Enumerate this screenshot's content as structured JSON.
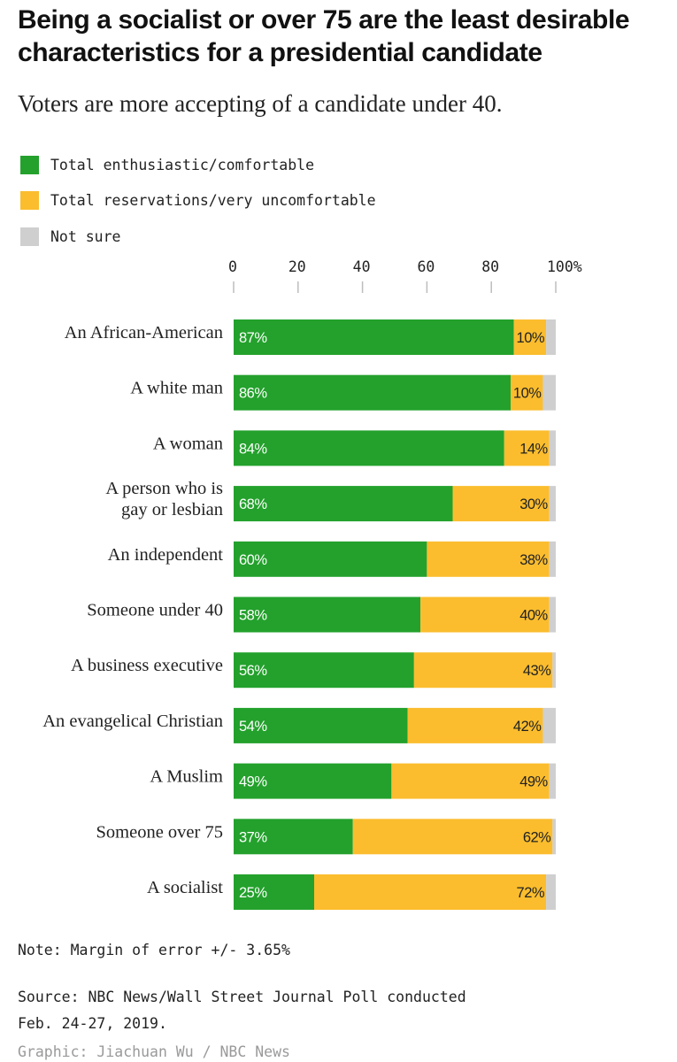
{
  "colors": {
    "enthusiastic": "#23a12c",
    "reservations": "#fbbd2e",
    "not_sure": "#cfcfcf"
  },
  "legend": [
    {
      "label": "Total enthusiastic/comfortable",
      "color": "#23a12c"
    },
    {
      "label": "Total reservations/very uncomfortable",
      "color": "#fbbd2e"
    },
    {
      "label": "Not sure",
      "color": "#cfcfcf"
    }
  ],
  "chart_data": {
    "type": "bar",
    "orientation": "horizontal",
    "stacked": true,
    "title": "Being a socialist or over 75 are the least desirable characteristics for a presidential candidate",
    "subtitle": "Voters are more accepting of a candidate under 40.",
    "xlim": [
      0,
      100
    ],
    "xticks": [
      "0",
      "20",
      "40",
      "60",
      "80",
      "100%"
    ],
    "xtick_values": [
      0,
      20,
      40,
      60,
      80,
      100
    ],
    "categories": [
      [
        "An African-American"
      ],
      [
        "A white man"
      ],
      [
        "A woman"
      ],
      [
        "A person who is",
        "gay or lesbian"
      ],
      [
        "An independent"
      ],
      [
        "Someone under 40"
      ],
      [
        "A business executive"
      ],
      [
        "An evangelical Christian"
      ],
      [
        "A Muslim"
      ],
      [
        "Someone over 75"
      ],
      [
        "A socialist"
      ]
    ],
    "series": [
      {
        "name": "Total enthusiastic/comfortable",
        "values": [
          87,
          86,
          84,
          68,
          60,
          58,
          56,
          54,
          49,
          37,
          25
        ],
        "labels": [
          "87%",
          "86%",
          "84%",
          "68%",
          "60%",
          "58%",
          "56%",
          "54%",
          "49%",
          "37%",
          "25%"
        ]
      },
      {
        "name": "Total reservations/very uncomfortable",
        "values": [
          10,
          10,
          14,
          30,
          38,
          40,
          43,
          42,
          49,
          62,
          72
        ],
        "labels": [
          "10%",
          "10%",
          "14%",
          "30%",
          "38%",
          "40%",
          "43%",
          "42%",
          "49%",
          "62%",
          "72%"
        ]
      },
      {
        "name": "Not sure",
        "values": [
          3,
          4,
          2,
          2,
          2,
          2,
          1,
          4,
          2,
          1,
          3
        ]
      }
    ]
  },
  "footer": {
    "note": "Note: Margin of error +/- 3.65%",
    "source_line1": "Source: NBC News/Wall Street Journal Poll conducted",
    "source_line2": "Feb. 24-27, 2019.",
    "credit": "Graphic: Jiachuan Wu / NBC News"
  }
}
